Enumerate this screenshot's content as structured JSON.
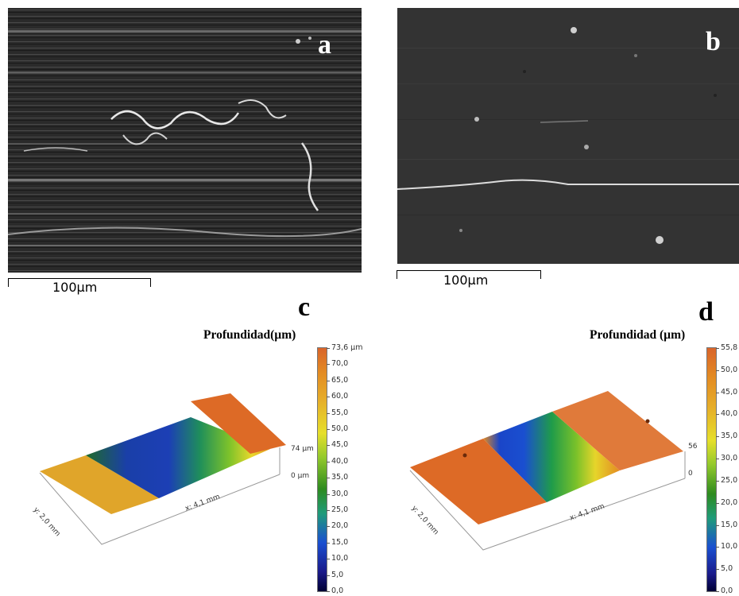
{
  "panels": {
    "a": {
      "letter": "a",
      "scale": "100µm"
    },
    "b": {
      "letter": "b",
      "scale": "100µm"
    },
    "c": {
      "letter": "c",
      "title": "Profundidad(µm)",
      "ticks": [
        "73,6 µm",
        "70,0",
        "65,0",
        "60,0",
        "55,0",
        "50,0",
        "45,0",
        "40,0",
        "35,0",
        "30,0",
        "25,0",
        "20,0",
        "15,0",
        "10,0",
        "5,0",
        "0,0"
      ],
      "z_top": "74 µm",
      "z_bottom": "0 µm",
      "x_label": "x: 4,1 mm",
      "y_label": "y: 2,0 mm"
    },
    "d": {
      "letter": "d",
      "title": "Profundidad (µm)",
      "ticks": [
        "55,8",
        "50,0",
        "45,0",
        "40,0",
        "35,0",
        "30,0",
        "25,0",
        "20,0",
        "15,0",
        "10,0",
        "5,0",
        "0,0"
      ],
      "z_top": "56",
      "z_bottom": "0",
      "x_label": "x: 4,1 mm",
      "y_label": "y: 2,0 mm"
    }
  },
  "colors": {
    "colormap": [
      "#000033",
      "#1a1a8a",
      "#1a4fd0",
      "#1f9b7a",
      "#2e8b1f",
      "#78c42a",
      "#e6df2b",
      "#e6a21f",
      "#d97322",
      "#d9642a"
    ]
  }
}
